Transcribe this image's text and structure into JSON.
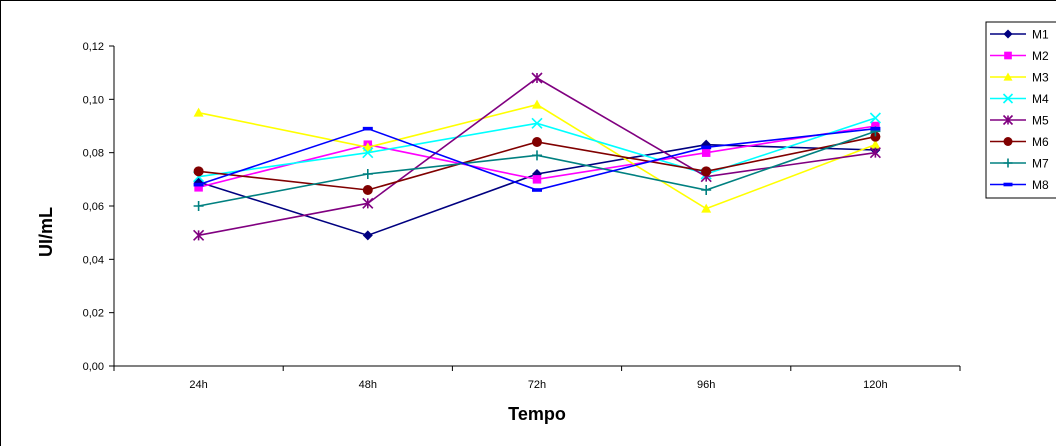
{
  "chart_data": {
    "type": "line",
    "title": "",
    "xlabel": "Tempo",
    "ylabel": "UI/mL",
    "categories": [
      "24h",
      "48h",
      "72h",
      "96h",
      "120h"
    ],
    "ylim": [
      0,
      0.12
    ],
    "yticks": [
      0,
      0.02,
      0.04,
      0.06,
      0.08,
      0.1,
      0.12
    ],
    "ytick_labels": [
      "0,00",
      "0,02",
      "0,04",
      "0,06",
      "0,08",
      "0,10",
      "0,12"
    ],
    "grid": false,
    "legend_position": "right",
    "series": [
      {
        "name": "M1",
        "color": "#000080",
        "marker": "diamond",
        "values": [
          0.069,
          0.049,
          0.072,
          0.083,
          0.081
        ]
      },
      {
        "name": "M2",
        "color": "#ff00ff",
        "marker": "square",
        "values": [
          0.067,
          0.083,
          0.07,
          0.08,
          0.09
        ]
      },
      {
        "name": "M3",
        "color": "#ffff00",
        "marker": "triangle",
        "values": [
          0.095,
          0.082,
          0.098,
          0.059,
          0.083
        ]
      },
      {
        "name": "M4",
        "color": "#00ffff",
        "marker": "x",
        "values": [
          0.071,
          0.08,
          0.091,
          0.072,
          0.093
        ]
      },
      {
        "name": "M5",
        "color": "#800080",
        "marker": "star",
        "values": [
          0.049,
          0.061,
          0.108,
          0.071,
          0.08
        ]
      },
      {
        "name": "M6",
        "color": "#800000",
        "marker": "circle",
        "values": [
          0.073,
          0.066,
          0.084,
          0.073,
          0.086
        ]
      },
      {
        "name": "M7",
        "color": "#008080",
        "marker": "plus",
        "values": [
          0.06,
          0.072,
          0.079,
          0.066,
          0.088
        ]
      },
      {
        "name": "M8",
        "color": "#0000ff",
        "marker": "dash",
        "values": [
          0.068,
          0.089,
          0.066,
          0.082,
          0.089
        ]
      }
    ]
  }
}
